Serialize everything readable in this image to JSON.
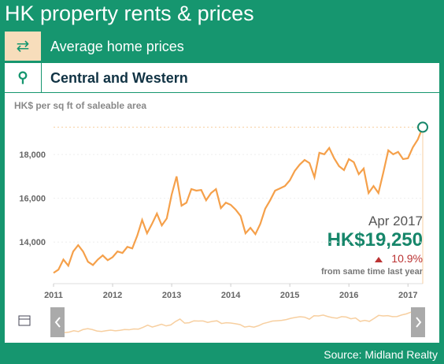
{
  "header": {
    "title": "HK property rents & prices"
  },
  "selector": {
    "measure": "Average home prices",
    "district": "Central and Western"
  },
  "chart_data": {
    "type": "line",
    "ylabel": "HK$ per sq ft of saleable area",
    "x": [
      2011,
      2011.083,
      2011.167,
      2011.25,
      2011.333,
      2011.417,
      2011.5,
      2011.583,
      2011.667,
      2011.75,
      2011.833,
      2011.917,
      2012,
      2012.083,
      2012.167,
      2012.25,
      2012.333,
      2012.417,
      2012.5,
      2012.583,
      2012.667,
      2012.75,
      2012.833,
      2012.917,
      2013,
      2013.083,
      2013.167,
      2013.25,
      2013.333,
      2013.417,
      2013.5,
      2013.583,
      2013.667,
      2013.75,
      2013.833,
      2013.917,
      2014,
      2014.083,
      2014.167,
      2014.25,
      2014.333,
      2014.417,
      2014.5,
      2014.583,
      2014.667,
      2014.75,
      2014.833,
      2014.917,
      2015,
      2015.083,
      2015.167,
      2015.25,
      2015.333,
      2015.417,
      2015.5,
      2015.583,
      2015.667,
      2015.75,
      2015.833,
      2015.917,
      2016,
      2016.083,
      2016.167,
      2016.25,
      2016.333,
      2016.417,
      2016.5,
      2016.583,
      2016.667,
      2016.75,
      2016.833,
      2016.917,
      2017,
      2017.083,
      2017.167,
      2017.25
    ],
    "series": [
      {
        "name": "Average home prices",
        "color": "#f5a04a",
        "values": [
          12590,
          12740,
          13200,
          12920,
          13570,
          13860,
          13570,
          13100,
          12950,
          13200,
          13390,
          13170,
          13310,
          13570,
          13500,
          13780,
          13710,
          14290,
          15010,
          14400,
          14830,
          15300,
          14760,
          15080,
          16170,
          17000,
          15660,
          15800,
          16420,
          16350,
          16380,
          15910,
          16240,
          16420,
          15550,
          15800,
          15700,
          15480,
          15190,
          14400,
          14650,
          14360,
          14830,
          15520,
          15910,
          16350,
          16450,
          16560,
          16820,
          17250,
          17540,
          17750,
          17610,
          16960,
          18080,
          18010,
          18300,
          17830,
          17470,
          17290,
          17790,
          17650,
          17100,
          17360,
          16240,
          16560,
          16240,
          17180,
          18190,
          18010,
          18120,
          17790,
          17830,
          18330,
          18690,
          19250
        ]
      }
    ],
    "xlim": [
      2011,
      2017.25
    ],
    "xticks": [
      2011,
      2012,
      2013,
      2014,
      2015,
      2016,
      2017
    ],
    "ylim": [
      12100,
      19300
    ],
    "yticks": [
      {
        "value": 14000,
        "label": "14,000"
      },
      {
        "value": 16000,
        "label": "16,000"
      },
      {
        "value": 18000,
        "label": "18,000"
      }
    ]
  },
  "callout": {
    "date": "Apr 2017",
    "value_label": "HK$19,250",
    "change": "10.9%",
    "change_note": "from same time last year"
  },
  "source": "Source: Midland Realty"
}
